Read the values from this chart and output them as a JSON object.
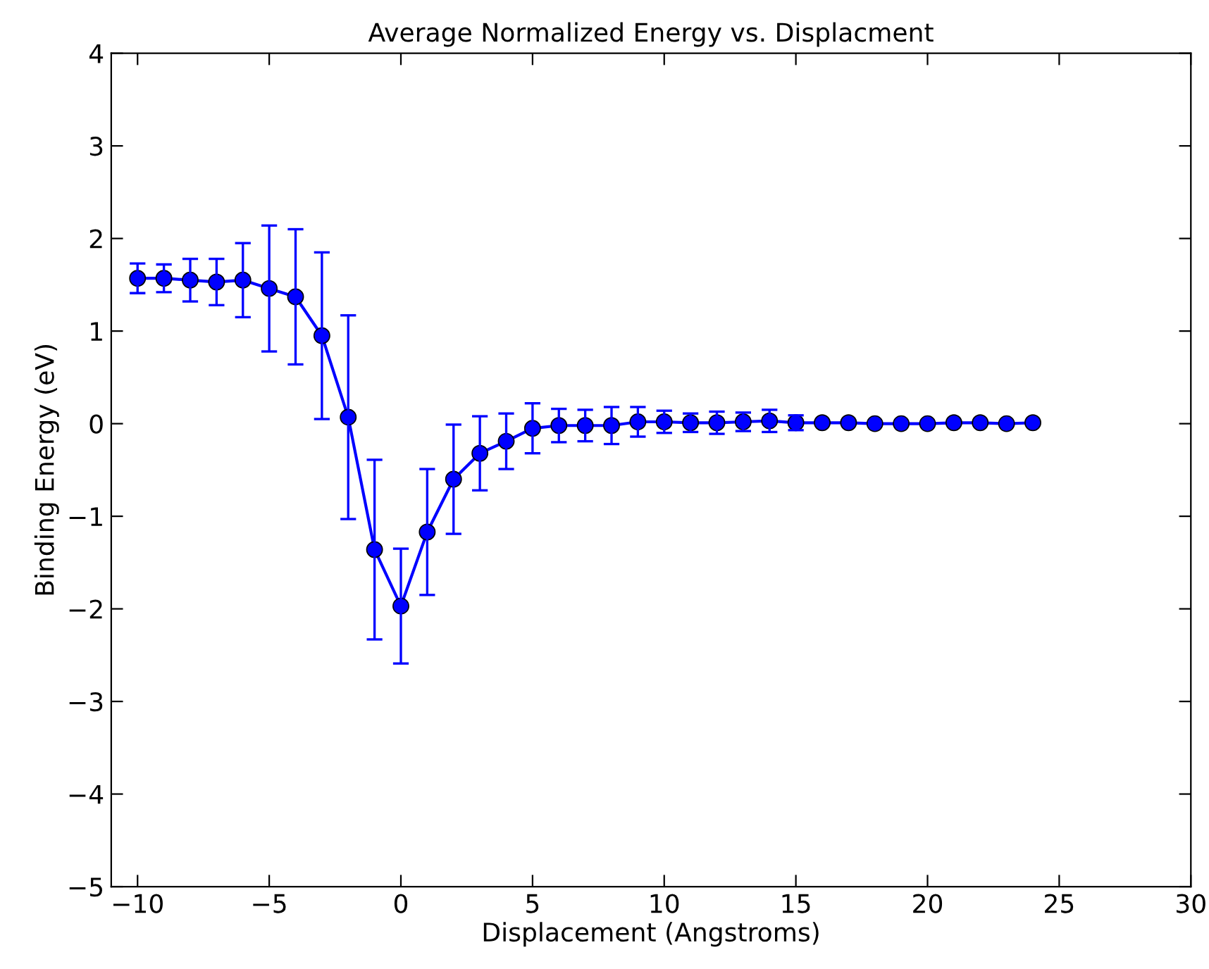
{
  "chart_data": {
    "type": "line",
    "title": "Average Normalized Energy vs. Displacment",
    "xlabel": "Displacement (Angstroms)",
    "ylabel": "Binding Energy (eV)",
    "x": [
      -10,
      -9,
      -8,
      -7,
      -6,
      -5,
      -4,
      -3,
      -2,
      -1,
      0,
      1,
      2,
      3,
      4,
      5,
      6,
      7,
      8,
      9,
      10,
      11,
      12,
      13,
      14,
      15,
      16,
      17,
      18,
      19,
      20,
      21,
      22,
      23,
      24
    ],
    "series": [
      {
        "color": "#0000ff",
        "values": [
          1.57,
          1.57,
          1.55,
          1.53,
          1.55,
          1.46,
          1.37,
          0.95,
          0.07,
          -1.36,
          -1.97,
          -1.17,
          -0.6,
          -0.32,
          -0.19,
          -0.05,
          -0.02,
          -0.02,
          -0.02,
          0.02,
          0.02,
          0.01,
          0.01,
          0.02,
          0.03,
          0.01,
          0.01,
          0.01,
          0.0,
          0.0,
          0.0,
          0.01,
          0.01,
          0.0,
          0.01
        ],
        "errors": [
          0.16,
          0.15,
          0.23,
          0.25,
          0.4,
          0.68,
          0.73,
          0.9,
          1.1,
          0.97,
          0.62,
          0.68,
          0.59,
          0.4,
          0.3,
          0.27,
          0.18,
          0.17,
          0.2,
          0.16,
          0.12,
          0.1,
          0.12,
          0.1,
          0.12,
          0.08,
          null,
          null,
          null,
          null,
          null,
          null,
          null,
          null,
          null
        ]
      }
    ],
    "marker": "circle",
    "line_style": "solid",
    "grid": false,
    "legend": false,
    "xlim": [
      -11,
      30
    ],
    "xticks": [
      -10,
      -5,
      0,
      5,
      10,
      15,
      20,
      25,
      30
    ],
    "ylim": [
      -5,
      4
    ],
    "yticks": [
      -5,
      -4,
      -3,
      -2,
      -1,
      0,
      1,
      2,
      3,
      4
    ]
  }
}
